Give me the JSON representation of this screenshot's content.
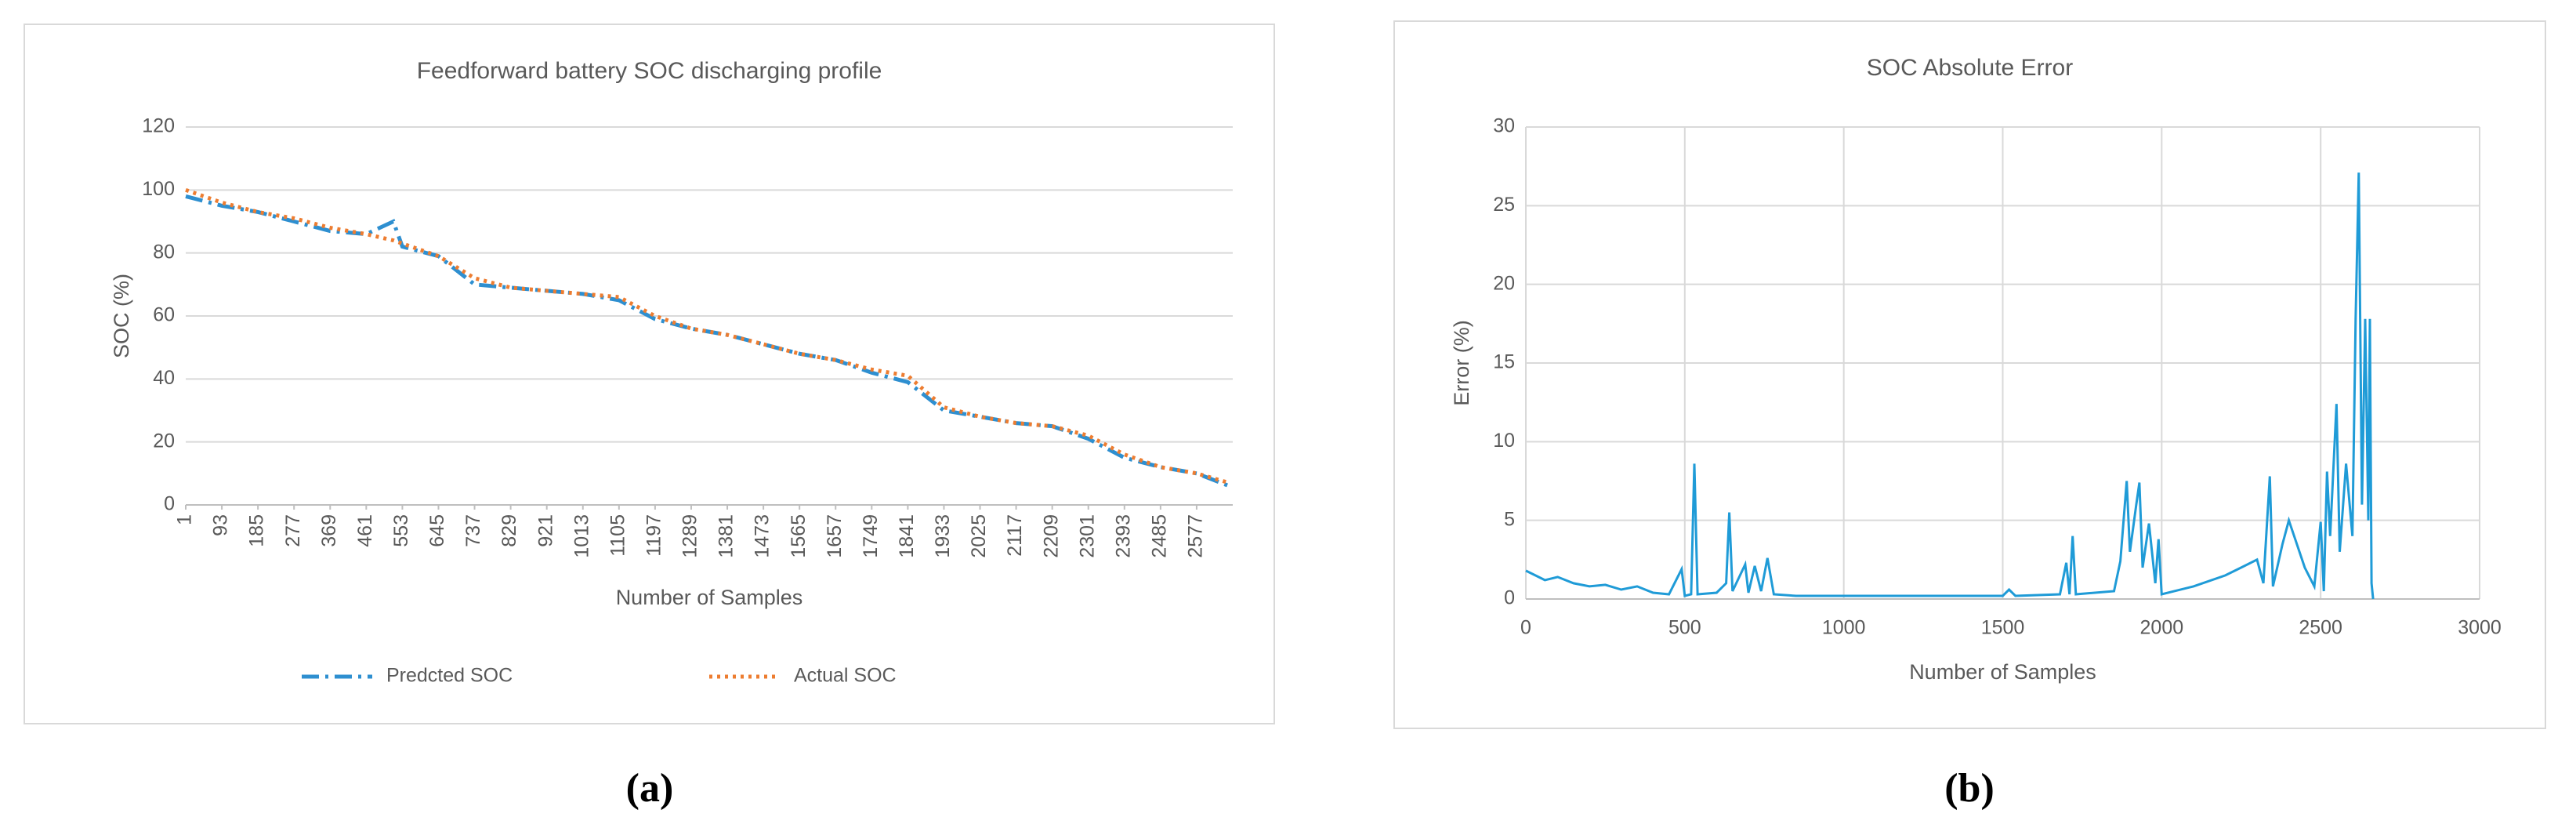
{
  "chart_data": [
    {
      "type": "line",
      "title": "Feedforward battery SOC discharging profile",
      "panel_label": "(a)",
      "y_label": "SOC (%)",
      "x_label": "Number of Samples",
      "x": [
        1,
        93,
        185,
        277,
        369,
        461,
        530,
        553,
        645,
        737,
        829,
        921,
        1013,
        1105,
        1197,
        1289,
        1381,
        1473,
        1565,
        1657,
        1749,
        1841,
        1933,
        2025,
        2117,
        2209,
        2301,
        2393,
        2485,
        2577,
        2660
      ],
      "series": [
        {
          "name": "Predcted SOC",
          "color": "#2e8fd0",
          "dash": "dashdot",
          "values": [
            98,
            95,
            93,
            90,
            87,
            86,
            90,
            82,
            79,
            70,
            69,
            68,
            67,
            65,
            59,
            56,
            54,
            51,
            48,
            46,
            42,
            39,
            30,
            28,
            26,
            25,
            21,
            15,
            12,
            10,
            6
          ]
        },
        {
          "name": "Actual SOC",
          "color": "#ed7d31",
          "dash": "dotted",
          "values": [
            100,
            96,
            93,
            91,
            88,
            86,
            84,
            83,
            79,
            72,
            69,
            68,
            67,
            66,
            60,
            56,
            54,
            51,
            48,
            46,
            43,
            41,
            31,
            28,
            26,
            25,
            22,
            16,
            12,
            10,
            7
          ]
        }
      ],
      "xlim": [
        1,
        2669
      ],
      "xticks": [
        1,
        93,
        185,
        277,
        369,
        461,
        553,
        645,
        737,
        829,
        921,
        1013,
        1105,
        1197,
        1289,
        1381,
        1473,
        1565,
        1657,
        1749,
        1841,
        1933,
        2025,
        2117,
        2209,
        2301,
        2393,
        2485,
        2577
      ],
      "ylim": [
        0,
        120
      ],
      "yticks": [
        0,
        20,
        40,
        60,
        80,
        100,
        120
      ],
      "grid": "y",
      "legend": "bottom"
    },
    {
      "type": "line",
      "title": "SOC Absolute Error",
      "panel_label": "(b)",
      "y_label": "Error (%)",
      "x_label": "Number of Samples",
      "x": [
        0,
        30,
        60,
        100,
        150,
        200,
        250,
        300,
        350,
        400,
        450,
        490,
        500,
        520,
        530,
        540,
        600,
        630,
        640,
        650,
        690,
        700,
        720,
        740,
        760,
        780,
        850,
        1000,
        1200,
        1400,
        1500,
        1520,
        1540,
        1680,
        1700,
        1710,
        1720,
        1730,
        1850,
        1870,
        1890,
        1900,
        1920,
        1930,
        1940,
        1960,
        1980,
        1990,
        2000,
        2100,
        2200,
        2250,
        2300,
        2320,
        2340,
        2350,
        2380,
        2400,
        2420,
        2450,
        2480,
        2500,
        2510,
        2520,
        2530,
        2550,
        2560,
        2580,
        2600,
        2610,
        2620,
        2630,
        2640,
        2650,
        2655,
        2660,
        2665
      ],
      "series": [
        {
          "name": "Error",
          "color": "#1f9bd7",
          "dash": "solid",
          "values": [
            1.8,
            1.5,
            1.2,
            1.4,
            1.0,
            0.8,
            0.9,
            0.6,
            0.8,
            0.4,
            0.3,
            1.9,
            0.2,
            0.3,
            8.6,
            0.3,
            0.4,
            1.0,
            5.5,
            0.5,
            2.2,
            0.4,
            2.1,
            0.5,
            2.6,
            0.3,
            0.2,
            0.2,
            0.2,
            0.2,
            0.2,
            0.6,
            0.2,
            0.3,
            2.3,
            0.3,
            4.0,
            0.3,
            0.5,
            2.4,
            7.5,
            3.0,
            6.0,
            7.4,
            2.0,
            4.8,
            1.0,
            3.8,
            0.3,
            0.8,
            1.5,
            2.0,
            2.5,
            1.0,
            7.8,
            0.8,
            3.5,
            5.0,
            3.8,
            2.0,
            0.8,
            4.9,
            0.5,
            8.1,
            4.0,
            12.4,
            3.0,
            8.6,
            4.0,
            17.8,
            27.1,
            6.0,
            17.8,
            5.0,
            17.8,
            1.0,
            0
          ]
        }
      ],
      "xlim": [
        0,
        3000
      ],
      "xticks": [
        0,
        500,
        1000,
        1500,
        2000,
        2500,
        3000
      ],
      "ylim": [
        0,
        30
      ],
      "yticks": [
        0,
        5,
        10,
        15,
        20,
        25,
        30
      ],
      "grid": "both",
      "legend": "none"
    }
  ]
}
